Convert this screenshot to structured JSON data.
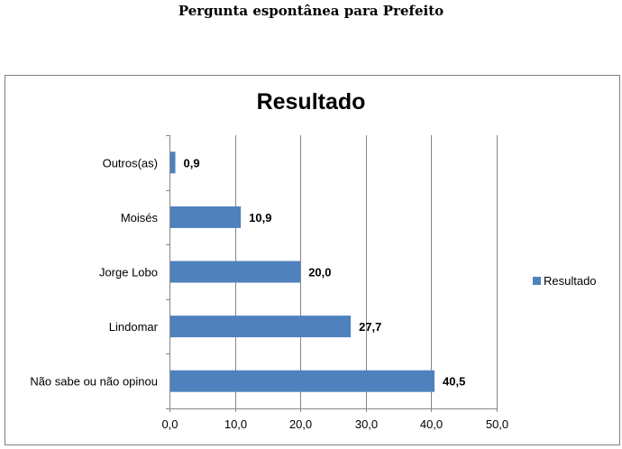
{
  "document_title": "Pergunta espontânea para Prefeito",
  "chart_data": {
    "type": "bar",
    "orientation": "horizontal",
    "title": "Resultado",
    "categories": [
      "Outros(as)",
      "Moisés",
      "Jorge Lobo",
      "Lindomar",
      "Não sabe ou não opinou"
    ],
    "series": [
      {
        "name": "Resultado",
        "values": [
          0.9,
          10.9,
          20.0,
          27.7,
          40.5
        ],
        "color": "#4F81BD"
      }
    ],
    "data_labels": [
      "0,9",
      "10,9",
      "20,0",
      "27,7",
      "40,5"
    ],
    "xlim": [
      0,
      50
    ],
    "xticks": [
      0,
      10,
      20,
      30,
      40,
      50
    ],
    "xtick_labels": [
      "0,0",
      "10,0",
      "20,0",
      "30,0",
      "40,0",
      "50,0"
    ],
    "xlabel": "",
    "ylabel": "",
    "grid": "vertical",
    "legend": {
      "entries": [
        "Resultado"
      ],
      "placement": "right"
    }
  }
}
